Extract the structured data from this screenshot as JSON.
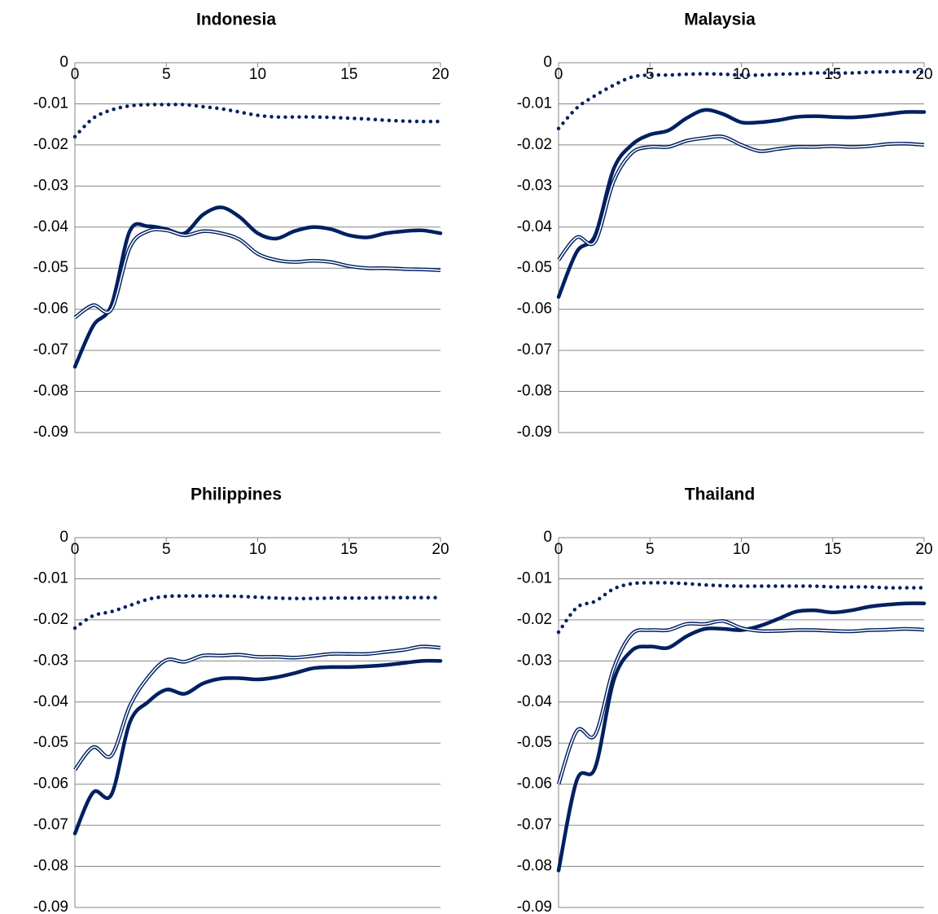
{
  "chart_data": [
    {
      "type": "line",
      "title": "Indonesia",
      "x": [
        0,
        1,
        2,
        3,
        4,
        5,
        6,
        7,
        8,
        9,
        10,
        11,
        12,
        13,
        14,
        15,
        16,
        17,
        18,
        19,
        20
      ],
      "xlim": [
        0,
        20
      ],
      "xticks": [
        0,
        5,
        10,
        15,
        20
      ],
      "ylim": [
        -0.09,
        0
      ],
      "yticks": [
        0,
        -0.01,
        -0.02,
        -0.03,
        -0.04,
        -0.05,
        -0.06,
        -0.07,
        -0.08,
        -0.09
      ],
      "grid": true,
      "series": [
        {
          "style": "dotted",
          "color": "#002060",
          "values": [
            -0.018,
            -0.0135,
            -0.0115,
            -0.0105,
            -0.0102,
            -0.0102,
            -0.0102,
            -0.0107,
            -0.0112,
            -0.012,
            -0.0128,
            -0.0132,
            -0.0132,
            -0.0132,
            -0.0133,
            -0.0135,
            -0.0137,
            -0.014,
            -0.0142,
            -0.0143,
            -0.0143
          ]
        },
        {
          "style": "solid",
          "color": "#002060",
          "values": [
            -0.074,
            -0.064,
            -0.059,
            -0.041,
            -0.0398,
            -0.0405,
            -0.0415,
            -0.037,
            -0.0352,
            -0.0375,
            -0.0415,
            -0.0428,
            -0.041,
            -0.04,
            -0.0405,
            -0.042,
            -0.0425,
            -0.0415,
            -0.041,
            -0.0408,
            -0.0415
          ]
        },
        {
          "style": "double",
          "color": "#002060",
          "values": [
            -0.062,
            -0.059,
            -0.06,
            -0.045,
            -0.041,
            -0.0408,
            -0.042,
            -0.041,
            -0.0415,
            -0.043,
            -0.0465,
            -0.048,
            -0.0485,
            -0.0482,
            -0.0485,
            -0.0495,
            -0.05,
            -0.05,
            -0.0502,
            -0.0503,
            -0.0505
          ]
        }
      ]
    },
    {
      "type": "line",
      "title": "Malaysia",
      "x": [
        0,
        1,
        2,
        3,
        4,
        5,
        6,
        7,
        8,
        9,
        10,
        11,
        12,
        13,
        14,
        15,
        16,
        17,
        18,
        19,
        20
      ],
      "xlim": [
        0,
        20
      ],
      "xticks": [
        0,
        5,
        10,
        15,
        20
      ],
      "ylim": [
        -0.09,
        0
      ],
      "yticks": [
        0,
        -0.01,
        -0.02,
        -0.03,
        -0.04,
        -0.05,
        -0.06,
        -0.07,
        -0.08,
        -0.09
      ],
      "grid": true,
      "series": [
        {
          "style": "dotted",
          "color": "#002060",
          "values": [
            -0.016,
            -0.011,
            -0.008,
            -0.0055,
            -0.0035,
            -0.003,
            -0.003,
            -0.0028,
            -0.0027,
            -0.0028,
            -0.003,
            -0.003,
            -0.0028,
            -0.0027,
            -0.0025,
            -0.0025,
            -0.0025,
            -0.0023,
            -0.0022,
            -0.0022,
            -0.0023
          ]
        },
        {
          "style": "solid",
          "color": "#002060",
          "values": [
            -0.057,
            -0.046,
            -0.042,
            -0.026,
            -0.02,
            -0.0175,
            -0.0165,
            -0.0135,
            -0.0115,
            -0.0125,
            -0.0145,
            -0.0145,
            -0.014,
            -0.0132,
            -0.013,
            -0.0132,
            -0.0133,
            -0.013,
            -0.0125,
            -0.012,
            -0.012
          ]
        },
        {
          "style": "double",
          "color": "#002060",
          "values": [
            -0.048,
            -0.0425,
            -0.0435,
            -0.029,
            -0.022,
            -0.0205,
            -0.0205,
            -0.019,
            -0.0183,
            -0.018,
            -0.02,
            -0.0215,
            -0.021,
            -0.0205,
            -0.0205,
            -0.0203,
            -0.0205,
            -0.0203,
            -0.0198,
            -0.0197,
            -0.02
          ]
        }
      ]
    },
    {
      "type": "line",
      "title": "Philippines",
      "x": [
        0,
        1,
        2,
        3,
        4,
        5,
        6,
        7,
        8,
        9,
        10,
        11,
        12,
        13,
        14,
        15,
        16,
        17,
        18,
        19,
        20
      ],
      "xlim": [
        0,
        20
      ],
      "xticks": [
        0,
        5,
        10,
        15,
        20
      ],
      "ylim": [
        -0.09,
        0
      ],
      "yticks": [
        0,
        -0.01,
        -0.02,
        -0.03,
        -0.04,
        -0.05,
        -0.06,
        -0.07,
        -0.08,
        -0.09
      ],
      "grid": true,
      "series": [
        {
          "style": "dotted",
          "color": "#002060",
          "values": [
            -0.022,
            -0.019,
            -0.018,
            -0.0165,
            -0.015,
            -0.0143,
            -0.0142,
            -0.0142,
            -0.0142,
            -0.0143,
            -0.0145,
            -0.0147,
            -0.0148,
            -0.0148,
            -0.0147,
            -0.0147,
            -0.0147,
            -0.0146,
            -0.0146,
            -0.0146,
            -0.0146
          ]
        },
        {
          "style": "solid",
          "color": "#002060",
          "values": [
            -0.072,
            -0.062,
            -0.0625,
            -0.045,
            -0.04,
            -0.037,
            -0.038,
            -0.0355,
            -0.0343,
            -0.0342,
            -0.0345,
            -0.034,
            -0.033,
            -0.0318,
            -0.0315,
            -0.0315,
            -0.0313,
            -0.031,
            -0.0305,
            -0.03,
            -0.03
          ]
        },
        {
          "style": "double",
          "color": "#002060",
          "values": [
            -0.0565,
            -0.051,
            -0.053,
            -0.041,
            -0.034,
            -0.0298,
            -0.0302,
            -0.0287,
            -0.0287,
            -0.0285,
            -0.029,
            -0.029,
            -0.0292,
            -0.0288,
            -0.0283,
            -0.0283,
            -0.0283,
            -0.0278,
            -0.0273,
            -0.0265,
            -0.0268
          ]
        }
      ]
    },
    {
      "type": "line",
      "title": "Thailand",
      "x": [
        0,
        1,
        2,
        3,
        4,
        5,
        6,
        7,
        8,
        9,
        10,
        11,
        12,
        13,
        14,
        15,
        16,
        17,
        18,
        19,
        20
      ],
      "xlim": [
        0,
        20
      ],
      "xticks": [
        0,
        5,
        10,
        15,
        20
      ],
      "ylim": [
        -0.09,
        0
      ],
      "yticks": [
        0,
        -0.01,
        -0.02,
        -0.03,
        -0.04,
        -0.05,
        -0.06,
        -0.07,
        -0.08,
        -0.09
      ],
      "grid": true,
      "series": [
        {
          "style": "dotted",
          "color": "#002060",
          "values": [
            -0.023,
            -0.017,
            -0.0155,
            -0.0125,
            -0.0112,
            -0.011,
            -0.011,
            -0.0112,
            -0.0115,
            -0.0117,
            -0.0118,
            -0.0118,
            -0.0118,
            -0.0118,
            -0.0118,
            -0.012,
            -0.012,
            -0.012,
            -0.0122,
            -0.0122,
            -0.0122
          ]
        },
        {
          "style": "solid",
          "color": "#002060",
          "values": [
            -0.081,
            -0.059,
            -0.056,
            -0.035,
            -0.0275,
            -0.0265,
            -0.0268,
            -0.024,
            -0.0222,
            -0.0222,
            -0.0225,
            -0.0215,
            -0.0198,
            -0.018,
            -0.0177,
            -0.0182,
            -0.0177,
            -0.0168,
            -0.0163,
            -0.016,
            -0.016
          ]
        },
        {
          "style": "double",
          "color": "#002060",
          "values": [
            -0.06,
            -0.047,
            -0.048,
            -0.032,
            -0.0235,
            -0.0225,
            -0.0225,
            -0.021,
            -0.021,
            -0.0203,
            -0.022,
            -0.0227,
            -0.0227,
            -0.0225,
            -0.0225,
            -0.0227,
            -0.0228,
            -0.0225,
            -0.0224,
            -0.0222,
            -0.0224
          ]
        }
      ]
    }
  ]
}
